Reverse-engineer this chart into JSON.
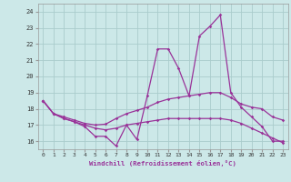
{
  "xlabel": "Windchill (Refroidissement éolien,°C)",
  "background_color": "#cce8e8",
  "grid_color": "#aacccc",
  "line_color": "#993399",
  "ylim": [
    15.5,
    24.5
  ],
  "xlim": [
    -0.5,
    23.5
  ],
  "yticks": [
    16,
    17,
    18,
    19,
    20,
    21,
    22,
    23,
    24
  ],
  "series": [
    [
      18.5,
      17.7,
      17.4,
      17.2,
      16.9,
      16.3,
      16.3,
      15.7,
      17.0,
      16.1,
      18.8,
      21.7,
      21.7,
      20.5,
      18.8,
      22.5,
      23.1,
      23.8,
      19.0,
      18.1,
      17.5,
      16.9,
      16.0,
      16.0
    ],
    [
      18.5,
      17.7,
      17.5,
      17.3,
      17.1,
      17.0,
      17.05,
      17.4,
      17.7,
      17.9,
      18.1,
      18.4,
      18.6,
      18.7,
      18.8,
      18.9,
      19.0,
      19.0,
      18.7,
      18.3,
      18.1,
      18.0,
      17.5,
      17.3
    ],
    [
      18.5,
      17.7,
      17.4,
      17.2,
      17.0,
      16.8,
      16.7,
      16.8,
      17.0,
      17.1,
      17.2,
      17.3,
      17.4,
      17.4,
      17.4,
      17.4,
      17.4,
      17.4,
      17.3,
      17.1,
      16.8,
      16.5,
      16.2,
      15.9
    ]
  ]
}
